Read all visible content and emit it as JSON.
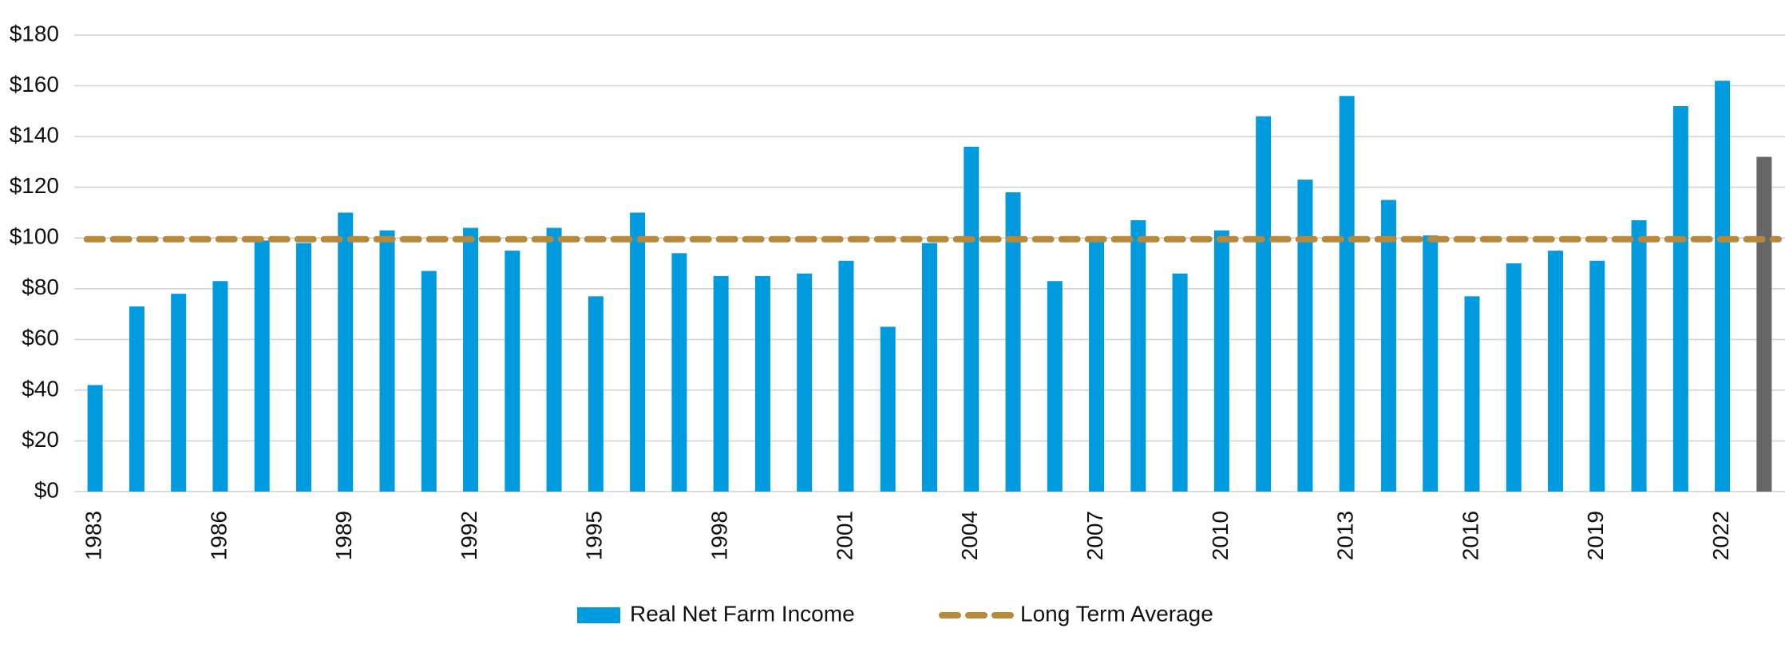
{
  "chart_data": {
    "type": "bar",
    "categories": [
      "1983",
      null,
      null,
      "1986",
      null,
      null,
      "1989",
      null,
      null,
      "1992",
      null,
      null,
      "1995",
      null,
      null,
      "1998",
      null,
      null,
      "2001",
      null,
      null,
      "2004",
      null,
      null,
      "2007",
      null,
      null,
      "2010",
      null,
      null,
      "2013",
      null,
      null,
      "2016",
      null,
      null,
      "2019",
      null,
      null,
      "2022",
      null
    ],
    "series": [
      {
        "name": "Real Net Farm Income",
        "color": "#009bde",
        "colors": [
          "#009bde",
          "#009bde",
          "#009bde",
          "#009bde",
          "#009bde",
          "#009bde",
          "#009bde",
          "#009bde",
          "#009bde",
          "#009bde",
          "#009bde",
          "#009bde",
          "#009bde",
          "#009bde",
          "#009bde",
          "#009bde",
          "#009bde",
          "#009bde",
          "#009bde",
          "#009bde",
          "#009bde",
          "#009bde",
          "#009bde",
          "#009bde",
          "#009bde",
          "#009bde",
          "#009bde",
          "#009bde",
          "#009bde",
          "#009bde",
          "#009bde",
          "#009bde",
          "#009bde",
          "#009bde",
          "#009bde",
          "#009bde",
          "#009bde",
          "#009bde",
          "#009bde",
          "#009bde",
          "#666666"
        ],
        "values": [
          42,
          73,
          78,
          83,
          99,
          98,
          110,
          103,
          87,
          104,
          95,
          104,
          77,
          110,
          94,
          85,
          85,
          86,
          91,
          65,
          98,
          136,
          118,
          83,
          99,
          107,
          86,
          103,
          148,
          123,
          156,
          115,
          101,
          77,
          90,
          95,
          91,
          107,
          152,
          162,
          132
        ]
      },
      {
        "name": "Long Term Average",
        "color": "#b8893a",
        "type": "line",
        "value": 99.5
      }
    ],
    "ylim": [
      0,
      180
    ],
    "yticks": [
      {
        "value": 0,
        "label": "$0"
      },
      {
        "value": 20,
        "label": "$20"
      },
      {
        "value": 40,
        "label": "$40"
      },
      {
        "value": 60,
        "label": "$60"
      },
      {
        "value": 80,
        "label": "$80"
      },
      {
        "value": 100,
        "label": "$100"
      },
      {
        "value": 120,
        "label": "$120"
      },
      {
        "value": 140,
        "label": "$140"
      },
      {
        "value": 160,
        "label": "$160"
      },
      {
        "value": 180,
        "label": "$180"
      }
    ],
    "grid": true,
    "legend": "bottom"
  }
}
